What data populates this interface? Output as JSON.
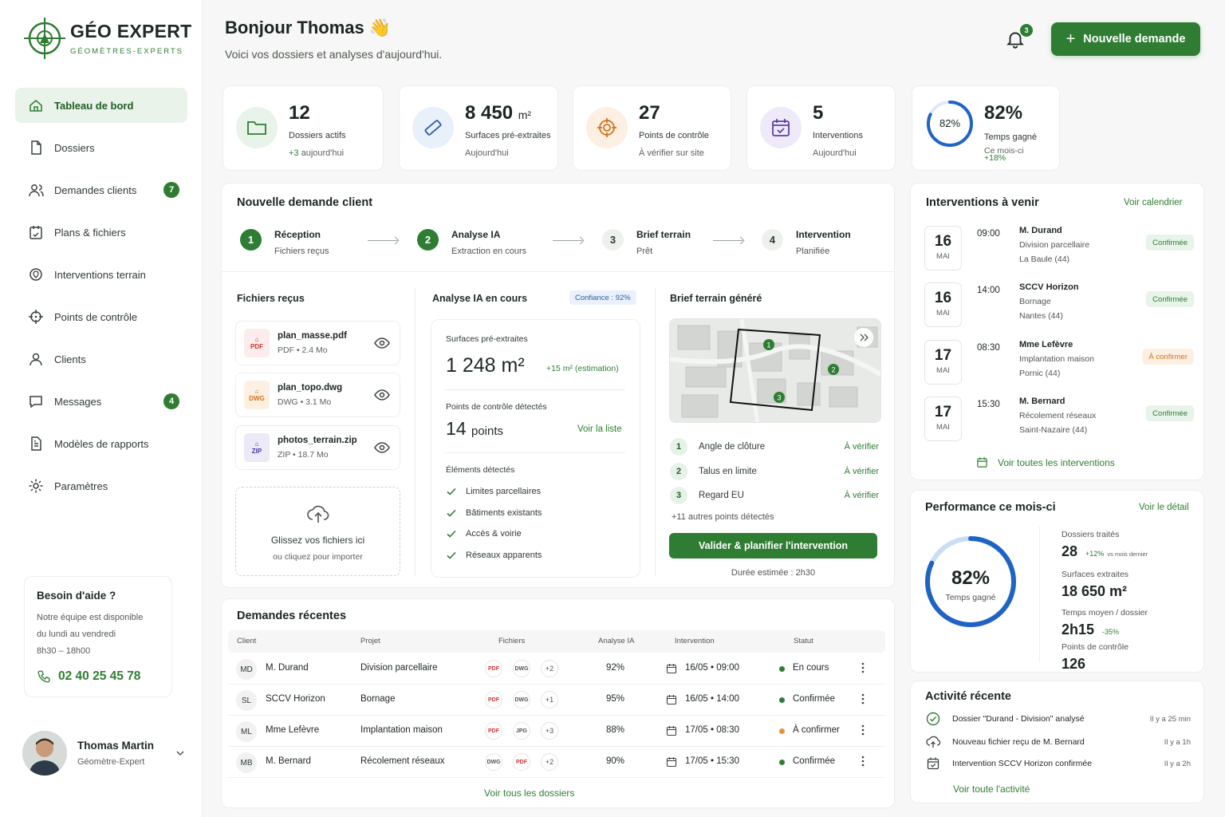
{
  "brand": {
    "name": "GÉO EXPERT",
    "tagline": "GÉOMÈTRES-EXPERTS"
  },
  "nav": [
    {
      "label": "Tableau de bord",
      "icon": "home-icon",
      "active": true
    },
    {
      "label": "Dossiers",
      "icon": "file-icon"
    },
    {
      "label": "Demandes clients",
      "icon": "users-icon",
      "badge": "7"
    },
    {
      "label": "Plans & fichiers",
      "icon": "plans-icon"
    },
    {
      "label": "Interventions terrain",
      "icon": "map-pin-icon"
    },
    {
      "label": "Points de contrôle",
      "icon": "crosshair-icon"
    },
    {
      "label": "Clients",
      "icon": "user-icon"
    },
    {
      "label": "Messages",
      "icon": "message-icon",
      "badge": "4"
    },
    {
      "label": "Modèles de rapports",
      "icon": "report-icon"
    },
    {
      "label": "Paramètres",
      "icon": "gear-icon"
    }
  ],
  "help": {
    "title": "Besoin d'aide ?",
    "line1": "Notre équipe est disponible",
    "line2": "du lundi au vendredi",
    "line3": "8h30 – 18h00",
    "phone": "02 40 25 45 78"
  },
  "user": {
    "name": "Thomas Martin",
    "role": "Géomètre-Expert"
  },
  "header": {
    "greeting": "Bonjour Thomas",
    "emoji": "👋",
    "subtitle": "Voici vos dossiers et analyses d'aujourd'hui.",
    "notif_count": "3",
    "new_button": "Nouvelle demande"
  },
  "stats": [
    {
      "value": "12",
      "unit": "",
      "label": "Dossiers actifs",
      "note_hl": "+3",
      "note": " aujourd'hui"
    },
    {
      "value": "8 450",
      "unit": "m²",
      "label": "Surfaces pré-extraites",
      "note_hl": "",
      "note": "Aujourd'hui"
    },
    {
      "value": "27",
      "unit": "",
      "label": "Points de contrôle",
      "note_hl": "",
      "note": "À vérifier sur site"
    },
    {
      "value": "5",
      "unit": "",
      "label": "Interventions",
      "note_hl": "",
      "note": "Aujourd'hui"
    }
  ],
  "time_saved": {
    "percent": 82,
    "value": "82%",
    "ring_label": "82%",
    "label": "Temps gagné",
    "period": "Ce mois-ci",
    "delta": "+18%"
  },
  "new_request": {
    "title": "Nouvelle demande client",
    "steps": [
      {
        "num": "1",
        "title": "Réception",
        "sub": "Fichiers reçus",
        "done": true
      },
      {
        "num": "2",
        "title": "Analyse IA",
        "sub": "Extraction en cours",
        "done": true
      },
      {
        "num": "3",
        "title": "Brief terrain",
        "sub": "Prêt",
        "done": false
      },
      {
        "num": "4",
        "title": "Intervention",
        "sub": "Planifiée",
        "done": false
      }
    ],
    "files_title": "Fichiers reçus",
    "files": [
      {
        "name": "plan_masse.pdf",
        "meta": "PDF • 2.4 Mo",
        "type": "PDF"
      },
      {
        "name": "plan_topo.dwg",
        "meta": "DWG • 3.1 Mo",
        "type": "DWG"
      },
      {
        "name": "photos_terrain.zip",
        "meta": "ZIP • 18.7 Mo",
        "type": "ZIP"
      }
    ],
    "drop_title": "Glissez vos fichiers ici",
    "drop_sub": "ou cliquez pour importer",
    "analysis_title": "Analyse IA en cours",
    "confidence": "Confiance : 92%",
    "surfaces_label": "Surfaces pré-extraites",
    "surfaces_value": "1 248 m²",
    "surfaces_est": "+15 m² (estimation)",
    "points_label": "Points de contrôle détectés",
    "points_value": "14",
    "points_unit": "points",
    "points_link": "Voir la liste",
    "elements_title": "Éléments détectés",
    "elements": [
      "Limites parcellaires",
      "Bâtiments existants",
      "Accès & voirie",
      "Réseaux apparents"
    ],
    "brief_title": "Brief terrain généré",
    "brief_points": [
      {
        "num": "1",
        "label": "Angle de clôture",
        "status": "À vérifier"
      },
      {
        "num": "2",
        "label": "Talus en limite",
        "status": "À vérifier"
      },
      {
        "num": "3",
        "label": "Regard EU",
        "status": "À vérifier"
      }
    ],
    "map_markers": [
      "1",
      "2",
      "3"
    ],
    "more_points": "+11 autres points détectés",
    "validate_button": "Valider & planifier l'intervention",
    "duration": "Durée estimée : 2h30"
  },
  "upcoming": {
    "title": "Interventions à venir",
    "calendar_link": "Voir calendrier",
    "items": [
      {
        "day": "16",
        "month": "MAI",
        "time": "09:00",
        "name": "M. Durand",
        "type": "Division parcellaire",
        "loc": "La Baule (44)",
        "status": "Confirmée",
        "ok": true
      },
      {
        "day": "16",
        "month": "MAI",
        "time": "14:00",
        "name": "SCCV Horizon",
        "type": "Bornage",
        "loc": "Nantes (44)",
        "status": "Confirmée",
        "ok": true
      },
      {
        "day": "17",
        "month": "MAI",
        "time": "08:30",
        "name": "Mme Lefèvre",
        "type": "Implantation maison",
        "loc": "Pornic (44)",
        "status": "À confirmer",
        "ok": false
      },
      {
        "day": "17",
        "month": "MAI",
        "time": "15:30",
        "name": "M. Bernard",
        "type": "Récolement réseaux",
        "loc": "Saint-Nazaire (44)",
        "status": "Confirmée",
        "ok": true
      }
    ],
    "all_link": "Voir toutes les interventions"
  },
  "performance": {
    "title": "Performance ce mois-ci",
    "detail_link": "Voir le détail",
    "ring_value": "82%",
    "ring_percent": 82,
    "ring_label": "Temps gagné",
    "items": [
      {
        "label": "Dossiers traités",
        "value": "28",
        "delta": "+12%",
        "delta_note": "vs mois dernier"
      },
      {
        "label": "Surfaces extraites",
        "value": "18 650 m²",
        "delta": "",
        "delta_note": ""
      },
      {
        "label": "Temps moyen / dossier",
        "value": "2h15",
        "delta": "-35%",
        "delta_note": ""
      },
      {
        "label": "Points de contrôle",
        "value": "126",
        "delta": "",
        "delta_note": ""
      }
    ]
  },
  "activity": {
    "title": "Activité récente",
    "items": [
      {
        "text": "Dossier \"Durand - Division\" analysé",
        "time": "Il y a 25 min",
        "icon": "check-circle-icon"
      },
      {
        "text": "Nouveau fichier reçu de M. Bernard",
        "time": "Il y a 1h",
        "icon": "upload-icon"
      },
      {
        "text": "Intervention SCCV Horizon confirmée",
        "time": "Il y a 2h",
        "icon": "calendar-check-icon"
      }
    ],
    "all_link": "Voir toute l'activité"
  },
  "recent": {
    "title": "Demandes récentes",
    "columns": [
      "Client",
      "Projet",
      "Fichiers",
      "Analyse IA",
      "Intervention",
      "Statut"
    ],
    "rows": [
      {
        "ini": "MD",
        "client": "M. Durand",
        "project": "Division parcellaire",
        "files": [
          "PDF",
          "DWG"
        ],
        "more": "+2",
        "ai": "92%",
        "date": "16/05 • 09:00",
        "status": "En cours",
        "color": "#2e7d32"
      },
      {
        "ini": "SL",
        "client": "SCCV Horizon",
        "project": "Bornage",
        "files": [
          "PDF",
          "DWG"
        ],
        "more": "+1",
        "ai": "95%",
        "date": "16/05 • 14:00",
        "status": "Confirmée",
        "color": "#2e7d32"
      },
      {
        "ini": "ML",
        "client": "Mme Lefèvre",
        "project": "Implantation maison",
        "files": [
          "PDF",
          "JPG"
        ],
        "more": "+3",
        "ai": "88%",
        "date": "17/05 • 08:30",
        "status": "À confirmer",
        "color": "#e8912d"
      },
      {
        "ini": "MB",
        "client": "M. Bernard",
        "project": "Récolement réseaux",
        "files": [
          "DWG",
          "PDF"
        ],
        "more": "+2",
        "ai": "90%",
        "date": "17/05 • 15:30",
        "status": "Confirmée",
        "color": "#2e7d32"
      }
    ],
    "all_link": "Voir tous les dossiers"
  }
}
